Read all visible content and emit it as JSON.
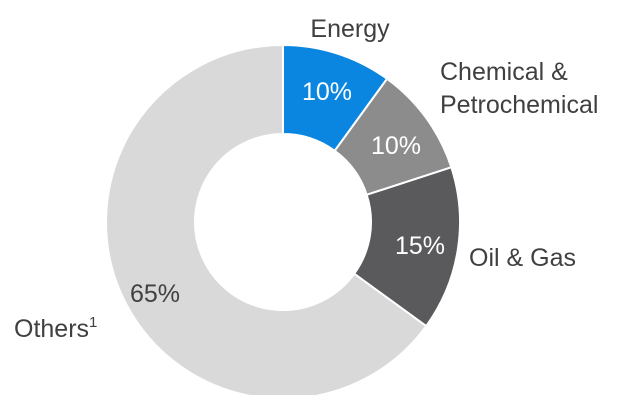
{
  "chart_data": {
    "type": "pie",
    "donut": true,
    "title": "",
    "slices": [
      {
        "label": "Energy",
        "value": 10,
        "value_label": "10%",
        "color": "#0a86e0",
        "value_color": "#ffffff"
      },
      {
        "label_lines": [
          "Chemical &",
          "Petrochemical"
        ],
        "label": "Chemical & Petrochemical",
        "value": 10,
        "value_label": "10%",
        "color": "#8c8c8c",
        "value_color": "#ffffff"
      },
      {
        "label": "Oil & Gas",
        "value": 15,
        "value_label": "15%",
        "color": "#5a595c",
        "value_color": "#ffffff"
      },
      {
        "label": "Others",
        "label_superscript": "1",
        "value": 65,
        "value_label": "65%",
        "color": "#d9d9d9",
        "value_color": "#404040"
      }
    ]
  }
}
